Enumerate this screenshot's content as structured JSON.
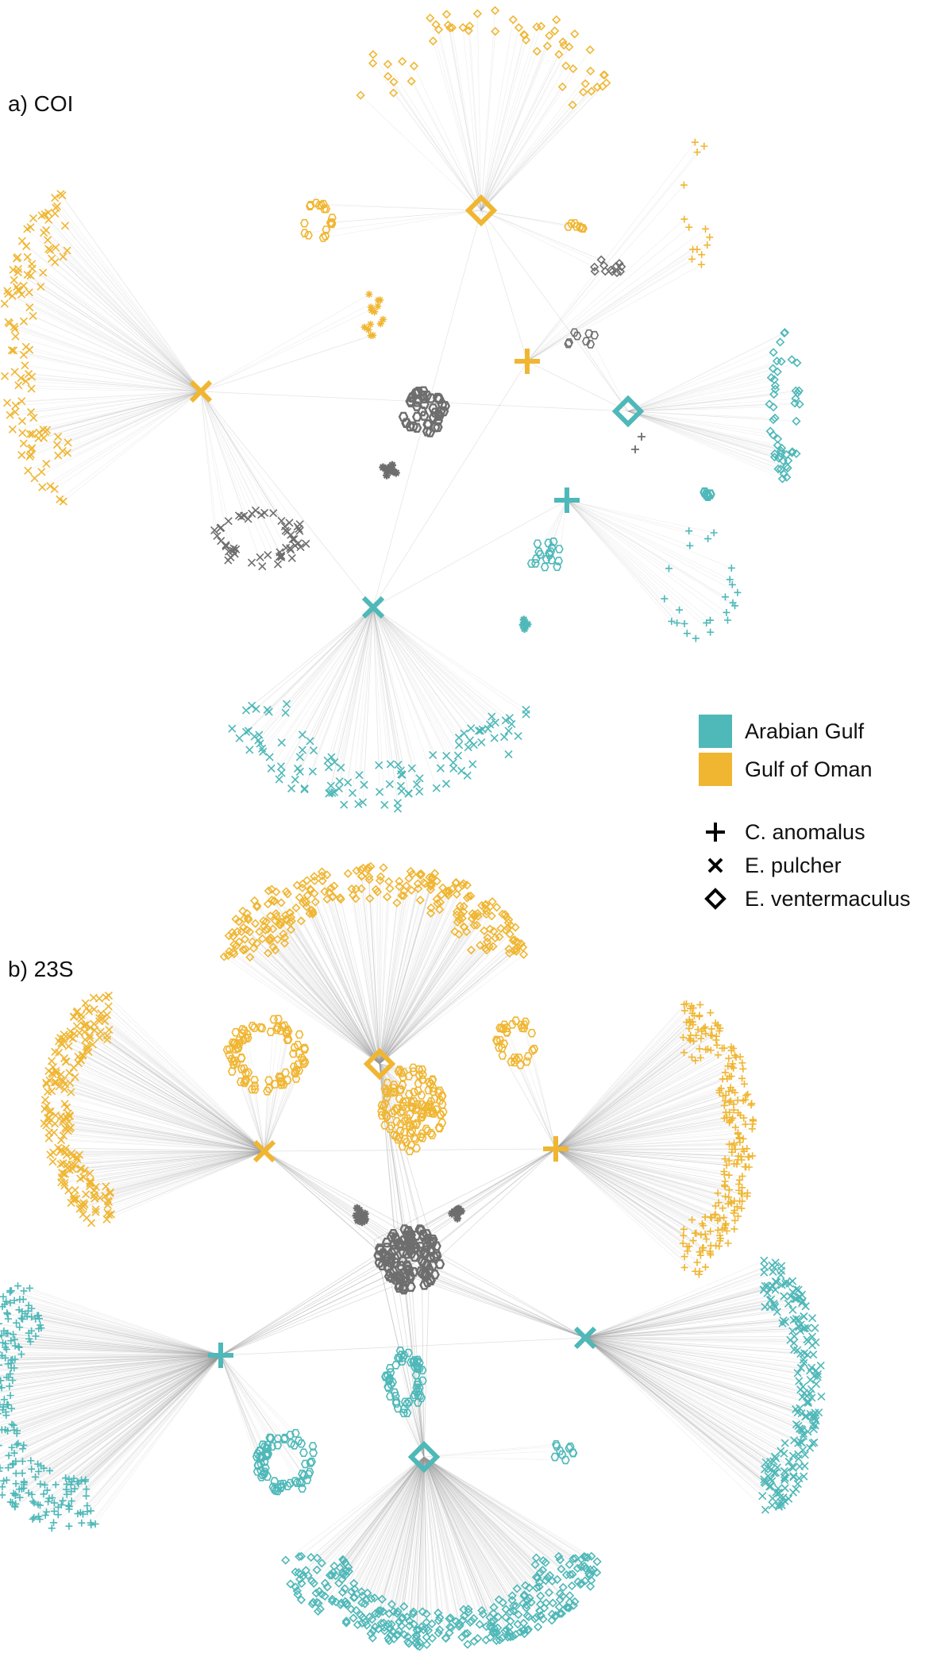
{
  "panels": [
    {
      "key": "coi",
      "label": "a) COI"
    },
    {
      "key": "s23",
      "label": "b) 23S"
    }
  ],
  "legend": {
    "regions": [
      {
        "name": "Arabian Gulf",
        "color": "#4fb8b8"
      },
      {
        "name": "Gulf of Oman",
        "color": "#f0b632"
      }
    ],
    "species": [
      {
        "name": "C. anomalus",
        "symbol": "plus-icon"
      },
      {
        "name": "E. pulcher",
        "symbol": "cross-icon"
      },
      {
        "name": "E. ventermaculus",
        "symbol": "diamond-icon"
      }
    ]
  },
  "colors": {
    "arabian_gulf": "#4fb8b8",
    "gulf_of_oman": "#f0b632",
    "shared": "#6e6e6e",
    "edge": "#c8c8c8"
  }
}
